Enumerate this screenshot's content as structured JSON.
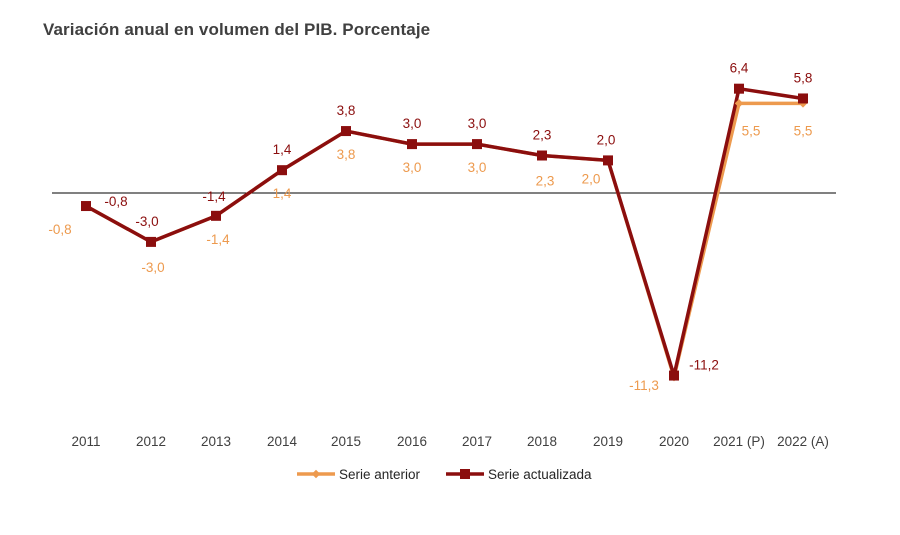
{
  "chart_data": {
    "type": "line",
    "title": "Variación anual en volumen del PIB. Porcentaje",
    "categories": [
      "2011",
      "2012",
      "2013",
      "2014",
      "2015",
      "2016",
      "2017",
      "2018",
      "2019",
      "2020",
      "2021 (P)",
      "2022 (A)"
    ],
    "series": [
      {
        "name": "Serie anterior",
        "color": "#ed9a4e",
        "values": [
          -0.8,
          -3.0,
          -1.4,
          1.4,
          3.8,
          3.0,
          3.0,
          2.3,
          2.0,
          -11.3,
          5.5,
          5.5
        ],
        "labels": [
          "-0,8",
          "-3,0",
          "-1,4",
          "1,4",
          "3,8",
          "3,0",
          "3,0",
          "2,3",
          "2,0",
          "-11,3",
          "5,5",
          "5,5"
        ]
      },
      {
        "name": "Serie actualizada",
        "color": "#8b0e0e",
        "values": [
          -0.8,
          -3.0,
          -1.4,
          1.4,
          3.8,
          3.0,
          3.0,
          2.3,
          2.0,
          -11.2,
          6.4,
          5.8
        ],
        "labels": [
          "-0,8",
          "-3,0",
          "-1,4",
          "1,4",
          "3,8",
          "3,0",
          "3,0",
          "2,3",
          "2,0",
          "-11,2",
          "6,4",
          "5,8"
        ]
      }
    ],
    "ylim": [
      -12,
      7
    ],
    "grid": false,
    "legend_position": "bottom"
  }
}
